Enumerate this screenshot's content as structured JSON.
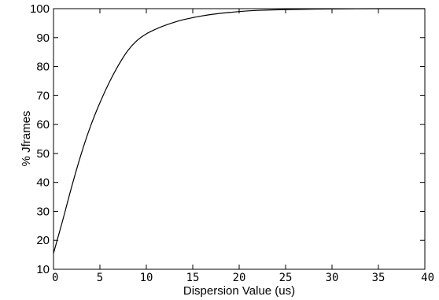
{
  "chart_data": {
    "type": "line",
    "xlabel": "Dispersion Value (us)",
    "ylabel": "% Jframes",
    "xlim": [
      0,
      40
    ],
    "ylim": [
      10,
      100
    ],
    "xticks": [
      0,
      5,
      10,
      15,
      20,
      25,
      30,
      35,
      40
    ],
    "yticks": [
      10,
      20,
      30,
      40,
      50,
      60,
      70,
      80,
      90,
      100
    ],
    "grid": false,
    "line_color": "#000000",
    "series": [
      {
        "x": [
          0,
          1,
          2,
          3,
          4,
          5,
          6,
          7,
          8,
          9,
          10,
          11,
          12,
          13,
          14,
          15,
          16,
          17,
          18,
          19,
          20,
          22,
          25,
          30,
          35,
          40
        ],
        "y": [
          15.5,
          27,
          39,
          50,
          59.5,
          67.5,
          74.5,
          80.5,
          85.5,
          89,
          91.3,
          92.9,
          94.2,
          95.3,
          96.2,
          96.9,
          97.5,
          98,
          98.4,
          98.7,
          99,
          99.4,
          99.7,
          99.9,
          100,
          100
        ]
      }
    ]
  }
}
